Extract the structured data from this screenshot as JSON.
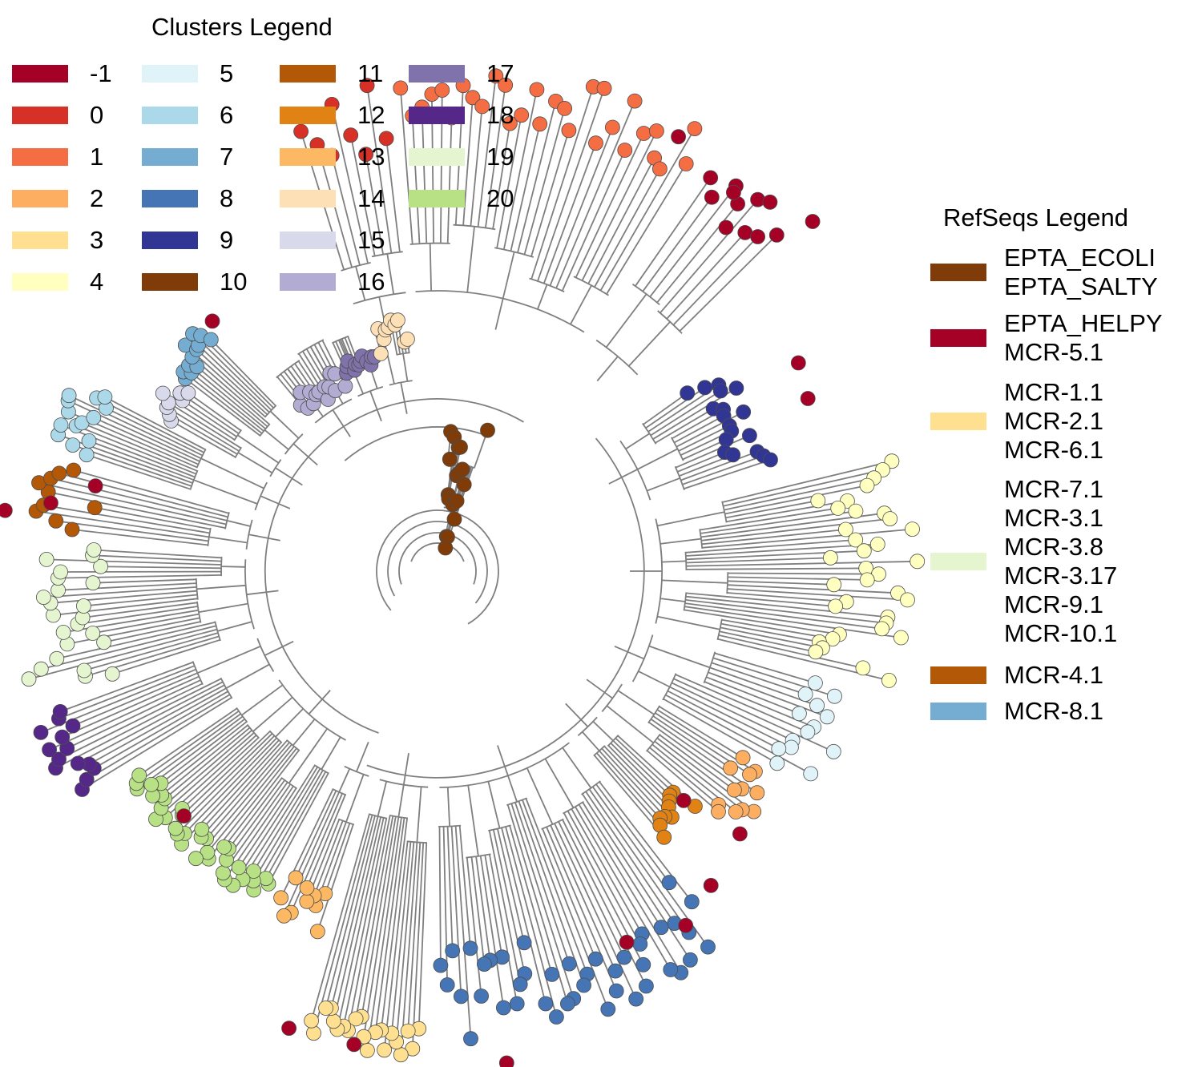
{
  "clusters_legend": {
    "title": "Clusters Legend",
    "items": [
      {
        "label": "-1",
        "color": "#a50026"
      },
      {
        "label": "0",
        "color": "#d73027"
      },
      {
        "label": "1",
        "color": "#f46d43"
      },
      {
        "label": "2",
        "color": "#fdae61"
      },
      {
        "label": "3",
        "color": "#fee090"
      },
      {
        "label": "4",
        "color": "#ffffbf"
      },
      {
        "label": "5",
        "color": "#e0f3f8"
      },
      {
        "label": "6",
        "color": "#abd9e9"
      },
      {
        "label": "7",
        "color": "#74add1"
      },
      {
        "label": "8",
        "color": "#4575b4"
      },
      {
        "label": "9",
        "color": "#313695"
      },
      {
        "label": "10",
        "color": "#7f3b08"
      },
      {
        "label": "11",
        "color": "#b35806"
      },
      {
        "label": "12",
        "color": "#e08214"
      },
      {
        "label": "13",
        "color": "#fdb863"
      },
      {
        "label": "14",
        "color": "#fee0b6"
      },
      {
        "label": "15",
        "color": "#d8daeb"
      },
      {
        "label": "16",
        "color": "#b2abd2"
      },
      {
        "label": "17",
        "color": "#8073ac"
      },
      {
        "label": "18",
        "color": "#542788"
      },
      {
        "label": "19",
        "color": "#e5f5d0"
      },
      {
        "label": "20",
        "color": "#b8e186"
      }
    ]
  },
  "refseqs_legend": {
    "title": "RefSeqs Legend",
    "groups": [
      {
        "color": "#7f3b08",
        "labels": [
          "EPTA_ECOLI",
          "EPTA_SALTY"
        ]
      },
      {
        "color": "#a50026",
        "labels": [
          "EPTA_HELPY",
          "MCR-5.1"
        ]
      },
      {
        "color": "#fee090",
        "labels": [
          "MCR-1.1",
          "MCR-2.1",
          "MCR-6.1"
        ]
      },
      {
        "color": "#e5f5d0",
        "labels": [
          "MCR-7.1",
          "MCR-3.1",
          "MCR-3.8",
          "MCR-3.17",
          "MCR-9.1",
          "MCR-10.1"
        ]
      },
      {
        "color": "#b35806",
        "labels": [
          "MCR-4.1"
        ]
      },
      {
        "color": "#74add1",
        "labels": [
          "MCR-8.1"
        ]
      }
    ]
  },
  "tree": {
    "layout": "circular",
    "branch_color": "#7f7f7f",
    "clades": [
      {
        "cluster": "1",
        "leaves": 32,
        "refseq_leaves": 0
      },
      {
        "cluster": "0",
        "leaves": 8,
        "refseq_leaves": 0
      },
      {
        "cluster": "-1",
        "leaves": 8,
        "refseq_leaves": 8
      },
      {
        "cluster": "9",
        "leaves": 18,
        "refseq_leaves": 0
      },
      {
        "cluster": "4",
        "leaves": 34,
        "refseq_leaves": 0
      },
      {
        "cluster": "5",
        "leaves": 14,
        "refseq_leaves": 0
      },
      {
        "cluster": "2",
        "leaves": 12,
        "refseq_leaves": 0
      },
      {
        "cluster": "12",
        "leaves": 10,
        "refseq_leaves": 0
      },
      {
        "cluster": "8",
        "leaves": 44,
        "refseq_leaves": 0
      },
      {
        "cluster": "3",
        "leaves": 20,
        "refseq_leaves": 0
      },
      {
        "cluster": "13",
        "leaves": 10,
        "refseq_leaves": 0
      },
      {
        "cluster": "20",
        "leaves": 34,
        "refseq_leaves": 0
      },
      {
        "cluster": "18",
        "leaves": 14,
        "refseq_leaves": 0
      },
      {
        "cluster": "19",
        "leaves": 24,
        "refseq_leaves": 0
      },
      {
        "cluster": "11",
        "leaves": 10,
        "refseq_leaves": 0
      },
      {
        "cluster": "6",
        "leaves": 14,
        "refseq_leaves": 0
      },
      {
        "cluster": "15",
        "leaves": 8,
        "refseq_leaves": 0
      },
      {
        "cluster": "7",
        "leaves": 12,
        "refseq_leaves": 0
      },
      {
        "cluster": "16",
        "leaves": 14,
        "refseq_leaves": 0
      },
      {
        "cluster": "17",
        "leaves": 12,
        "refseq_leaves": 0
      },
      {
        "cluster": "14",
        "leaves": 10,
        "refseq_leaves": 0
      },
      {
        "cluster": "10",
        "leaves": 18,
        "refseq_leaves": 0
      }
    ]
  }
}
